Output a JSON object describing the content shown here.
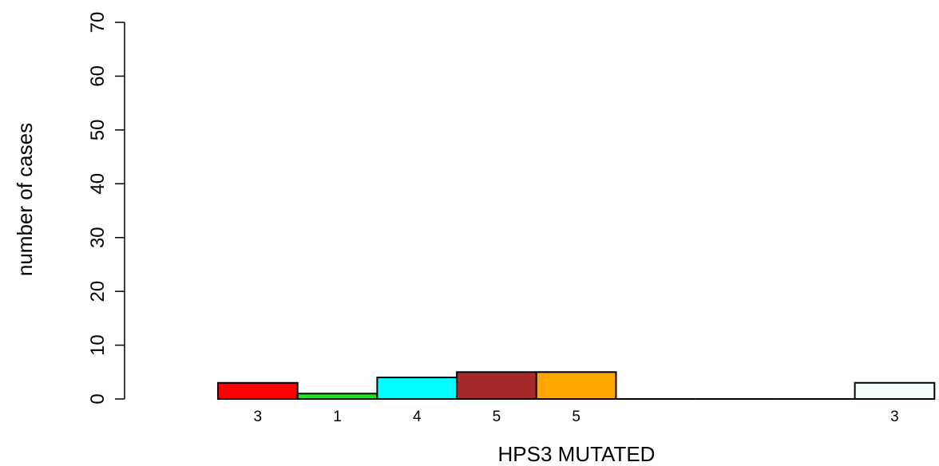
{
  "chart_data": {
    "type": "bar",
    "xlabel": "HPS3 MUTATED",
    "ylabel": "number of cases",
    "ylim": [
      0,
      70
    ],
    "yticks": [
      0,
      10,
      20,
      30,
      40,
      50,
      60,
      70
    ],
    "grid": false,
    "legend": "none",
    "bars": [
      {
        "value": 3,
        "label": "3",
        "color": "#ff0000"
      },
      {
        "value": 1,
        "label": "1",
        "color": "#22e022"
      },
      {
        "value": 4,
        "label": "4",
        "color": "#00ffff"
      },
      {
        "value": 5,
        "label": "5",
        "color": "#a52a2a"
      },
      {
        "value": 5,
        "label": "5",
        "color": "#ffa500"
      },
      {
        "value": 0,
        "label": "",
        "color": "#ffffff"
      },
      {
        "value": 0,
        "label": "",
        "color": "#ffffff"
      },
      {
        "value": 0,
        "label": "",
        "color": "#ffffff"
      },
      {
        "value": 3,
        "label": "3",
        "color": "#f0ffff"
      }
    ]
  }
}
